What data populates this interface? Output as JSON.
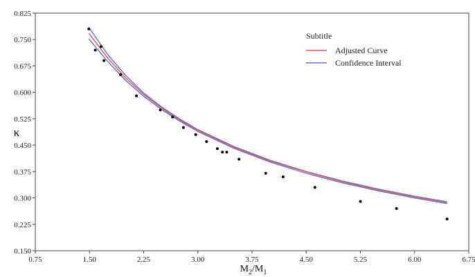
{
  "chart_data": {
    "type": "line",
    "title": "",
    "xlabel": {
      "main": "M",
      "sub1": "2",
      "sep": "/M",
      "sub2": "1"
    },
    "ylabel": "κ",
    "xlim": [
      0.75,
      6.75
    ],
    "ylim": [
      0.15,
      0.825
    ],
    "x_ticks": [
      "0.75",
      "1.50",
      "2.25",
      "3.00",
      "3.75",
      "4.50",
      "5.25",
      "6.00",
      "6.75"
    ],
    "y_ticks": [
      "0.150",
      "0.225",
      "0.300",
      "0.375",
      "0.450",
      "0.525",
      "0.600",
      "0.675",
      "0.750",
      "0.825"
    ],
    "legend": {
      "title": "Subtitle",
      "placement": "top-right",
      "entries": [
        {
          "name": "Adjusted Curve",
          "color": "#e8564a"
        },
        {
          "name": "Confidence Interval",
          "color": "#5b6fd6"
        }
      ]
    },
    "points": {
      "x": [
        1.49,
        1.58,
        1.66,
        1.7,
        1.93,
        2.15,
        2.48,
        2.65,
        2.8,
        2.97,
        3.12,
        3.27,
        3.34,
        3.4,
        3.57,
        3.94,
        4.18,
        4.62,
        5.25,
        5.75,
        6.45
      ],
      "y": [
        0.78,
        0.72,
        0.73,
        0.69,
        0.65,
        0.59,
        0.55,
        0.53,
        0.5,
        0.48,
        0.46,
        0.44,
        0.43,
        0.43,
        0.41,
        0.37,
        0.36,
        0.33,
        0.29,
        0.27,
        0.24
      ],
      "color": "#000000"
    },
    "series": [
      {
        "name": "Adjusted Curve",
        "color": "#e8564a",
        "x": [
          1.49,
          1.75,
          2.0,
          2.25,
          2.5,
          2.75,
          3.0,
          3.5,
          4.0,
          4.5,
          5.0,
          5.5,
          6.0,
          6.45
        ],
        "y": [
          0.768,
          0.698,
          0.641,
          0.594,
          0.555,
          0.521,
          0.492,
          0.444,
          0.405,
          0.374,
          0.346,
          0.323,
          0.303,
          0.287
        ]
      },
      {
        "name": "Confidence Interval (upper)",
        "color": "#5b6fd6",
        "x": [
          1.49,
          1.75,
          2.0,
          2.25,
          2.5,
          2.75,
          3.0,
          3.5,
          4.0,
          4.5,
          5.0,
          5.5,
          6.0,
          6.45
        ],
        "y": [
          0.785,
          0.708,
          0.648,
          0.598,
          0.558,
          0.524,
          0.494,
          0.446,
          0.407,
          0.375,
          0.348,
          0.325,
          0.305,
          0.289
        ]
      },
      {
        "name": "Confidence Interval (lower)",
        "color": "#5b6fd6",
        "x": [
          1.49,
          1.75,
          2.0,
          2.25,
          2.5,
          2.75,
          3.0,
          3.5,
          4.0,
          4.5,
          5.0,
          5.5,
          6.0,
          6.45
        ],
        "y": [
          0.752,
          0.688,
          0.634,
          0.589,
          0.551,
          0.518,
          0.489,
          0.441,
          0.402,
          0.37,
          0.343,
          0.32,
          0.3,
          0.284
        ]
      }
    ]
  }
}
